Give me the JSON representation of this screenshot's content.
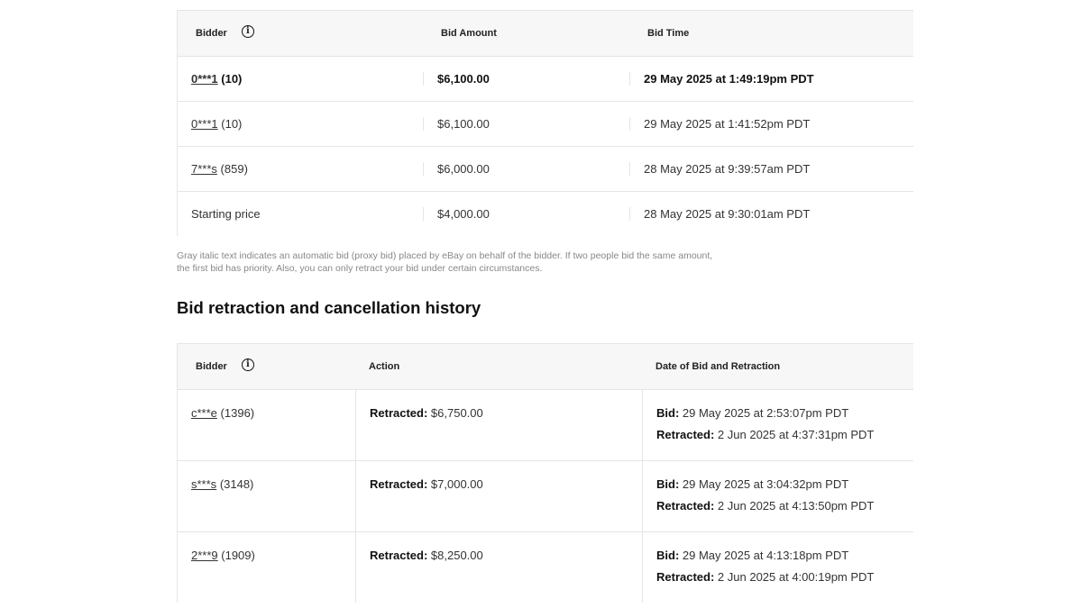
{
  "bid_history": {
    "headers": {
      "bidder": "Bidder",
      "amount": "Bid Amount",
      "time": "Bid Time"
    },
    "rows": [
      {
        "bidder": "0***1",
        "score": "(10)",
        "amount": "$6,100.00",
        "time": "29 May 2025 at 1:49:19pm PDT",
        "bold": true
      },
      {
        "bidder": "0***1",
        "score": "(10)",
        "amount": "$6,100.00",
        "time": "29 May 2025 at 1:41:52pm PDT"
      },
      {
        "bidder": "7***s",
        "score": "(859)",
        "amount": "$6,000.00",
        "time": "28 May 2025 at 9:39:57am PDT"
      },
      {
        "bidder": "Starting price",
        "score": "",
        "amount": "$4,000.00",
        "time": "28 May 2025 at 9:30:01am PDT",
        "plain": true
      }
    ]
  },
  "note": "Gray italic text indicates an automatic bid (proxy bid) placed by eBay on behalf of the bidder. If two people bid the same amount, the first bid has priority. Also, you can only retract your bid under certain circumstances.",
  "retraction": {
    "title": "Bid retraction and cancellation history",
    "headers": {
      "bidder": "Bidder",
      "action": "Action",
      "date": "Date of Bid and Retraction"
    },
    "labels": {
      "retracted": "Retracted:",
      "bid": "Bid:"
    },
    "rows": [
      {
        "bidder": "c***e",
        "score": "(1396)",
        "amount": "$6,750.00",
        "bid_date": "29 May 2025 at 2:53:07pm PDT",
        "retract_date": "2 Jun 2025 at 4:37:31pm PDT"
      },
      {
        "bidder": "s***s",
        "score": "(3148)",
        "amount": "$7,000.00",
        "bid_date": "29 May 2025 at 3:04:32pm PDT",
        "retract_date": "2 Jun 2025 at 4:13:50pm PDT"
      },
      {
        "bidder": "2***9",
        "score": "(1909)",
        "amount": "$8,250.00",
        "bid_date": "29 May 2025 at 4:13:18pm PDT",
        "retract_date": "2 Jun 2025 at 4:00:19pm PDT"
      }
    ]
  },
  "icons": {
    "info": "info-circle-icon"
  }
}
